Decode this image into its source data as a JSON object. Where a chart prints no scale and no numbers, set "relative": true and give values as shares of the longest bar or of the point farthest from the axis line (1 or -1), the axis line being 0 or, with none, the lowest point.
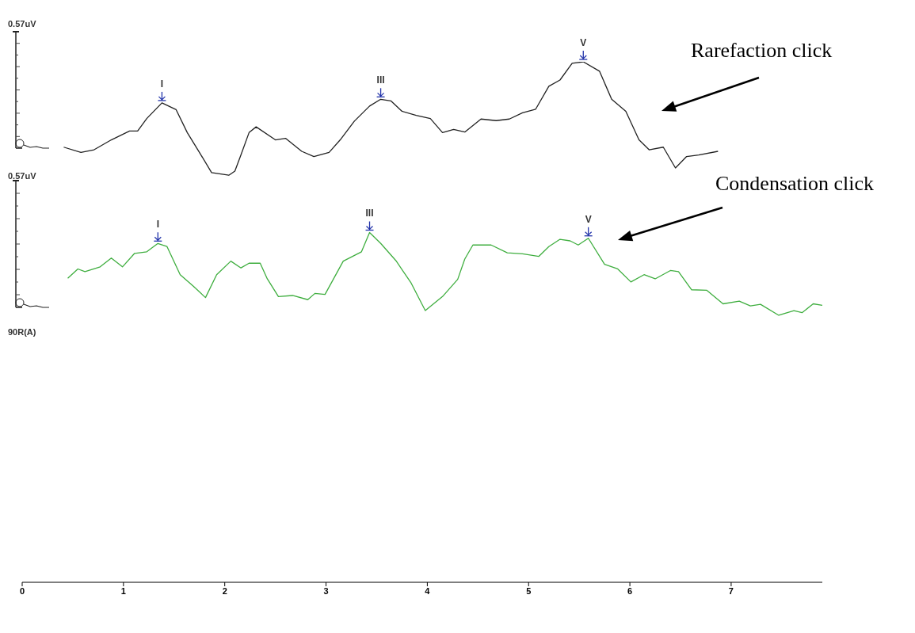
{
  "chart_data": {
    "type": "line",
    "relative": true,
    "marker": "none",
    "xlim": [
      0,
      7.9
    ],
    "xticks": [
      0,
      1,
      2,
      3,
      4,
      5,
      6,
      7
    ],
    "series": [
      {
        "name": "Rarefaction click",
        "color": "#222222",
        "x": [
          0.41,
          0.58,
          0.71,
          0.88,
          1.06,
          1.14,
          1.23,
          1.38,
          1.52,
          1.63,
          1.75,
          1.87,
          2.04,
          2.1,
          2.16,
          2.24,
          2.31,
          2.5,
          2.6,
          2.76,
          2.88,
          3.03,
          3.14,
          3.28,
          3.43,
          3.54,
          3.64,
          3.75,
          3.89,
          4.03,
          4.15,
          4.26,
          4.37,
          4.53,
          4.68,
          4.81,
          4.94,
          5.07,
          5.2,
          5.31,
          5.43,
          5.54,
          5.7,
          5.82,
          5.96,
          6.09,
          6.19,
          6.33,
          6.45,
          6.56,
          6.68,
          6.87
        ],
        "values": [
          0.836,
          0.826,
          0.831,
          0.85,
          0.867,
          0.867,
          0.891,
          0.921,
          0.908,
          0.864,
          0.826,
          0.787,
          0.782,
          0.79,
          0.821,
          0.864,
          0.875,
          0.85,
          0.853,
          0.828,
          0.818,
          0.826,
          0.85,
          0.886,
          0.915,
          0.928,
          0.925,
          0.905,
          0.897,
          0.891,
          0.864,
          0.87,
          0.865,
          0.89,
          0.887,
          0.89,
          0.902,
          0.909,
          0.953,
          0.965,
          0.997,
          1,
          0.982,
          0.928,
          0.905,
          0.85,
          0.831,
          0.836,
          0.796,
          0.818,
          0.821,
          0.828
        ]
      },
      {
        "name": "Condensation click",
        "color": "#3fae3f",
        "x": [
          0.45,
          0.55,
          0.62,
          0.77,
          0.88,
          0.99,
          1.11,
          1.23,
          1.34,
          1.43,
          1.56,
          1.69,
          1.81,
          1.92,
          2.06,
          2.16,
          2.24,
          2.35,
          2.42,
          2.53,
          2.67,
          2.82,
          2.89,
          2.99,
          3.17,
          3.35,
          3.43,
          3.54,
          3.69,
          3.84,
          3.98,
          4.15,
          4.3,
          4.37,
          4.45,
          4.63,
          4.79,
          4.94,
          5.1,
          5.2,
          5.31,
          5.41,
          5.49,
          5.59,
          5.75,
          5.88,
          6.01,
          6.14,
          6.25,
          6.4,
          6.48,
          6.61,
          6.76,
          6.92,
          7.08,
          7.19,
          7.29,
          7.47,
          7.62,
          7.7,
          7.81,
          7.9
        ],
        "values": [
          0.584,
          0.602,
          0.597,
          0.606,
          0.623,
          0.606,
          0.632,
          0.635,
          0.651,
          0.645,
          0.591,
          0.569,
          0.547,
          0.591,
          0.617,
          0.604,
          0.613,
          0.613,
          0.583,
          0.549,
          0.551,
          0.543,
          0.555,
          0.553,
          0.617,
          0.635,
          0.672,
          0.651,
          0.618,
          0.575,
          0.522,
          0.549,
          0.582,
          0.621,
          0.648,
          0.648,
          0.633,
          0.631,
          0.626,
          0.645,
          0.659,
          0.656,
          0.648,
          0.661,
          0.611,
          0.602,
          0.577,
          0.591,
          0.583,
          0.599,
          0.597,
          0.562,
          0.561,
          0.535,
          0.54,
          0.531,
          0.534,
          0.513,
          0.522,
          0.518,
          0.535,
          0.532
        ]
      }
    ],
    "annotations": [
      "0.57uV",
      "0.57uV",
      "90R(A)",
      {
        "text": "I",
        "x": 1.38,
        "y": 0.921
      },
      {
        "text": "III",
        "x": 3.54,
        "y": 0.928
      },
      {
        "text": "V",
        "x": 5.54,
        "y": 1
      },
      {
        "text": "I",
        "x": 1.34,
        "y": 0.651
      },
      {
        "text": "III",
        "x": 3.43,
        "y": 0.672
      },
      {
        "text": "V",
        "x": 5.59,
        "y": 0.661
      }
    ]
  }
}
